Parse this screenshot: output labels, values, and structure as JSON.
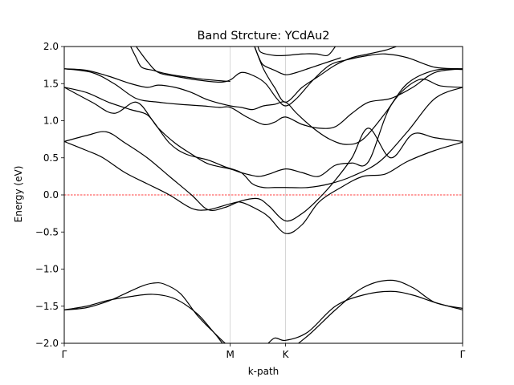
{
  "chart_data": {
    "type": "line",
    "title": "Band Strcture: YCdAu2",
    "xlabel": "k-path",
    "ylabel": "Energy (eV)",
    "ylim": [
      -2.0,
      2.0
    ],
    "xlim": [
      0,
      3.6
    ],
    "grid": false,
    "yticks": [
      -2.0,
      -1.5,
      -1.0,
      -0.5,
      0.0,
      0.5,
      1.0,
      1.5,
      2.0
    ],
    "ytick_labels": [
      "−2.0",
      "−1.5",
      "−1.0",
      "−0.5",
      "0.0",
      "0.5",
      "1.0",
      "1.5",
      "2.0"
    ],
    "kpoints": [
      {
        "label": "Γ",
        "x": 0.0
      },
      {
        "label": "M",
        "x": 1.5
      },
      {
        "label": "K",
        "x": 2.0
      },
      {
        "label": "Γ",
        "x": 3.6
      }
    ],
    "fermi_level": 0.0,
    "colors": {
      "bands": "#000000",
      "fermi": "#ff0000",
      "kline": "#cccccc"
    },
    "series": [
      {
        "x": [
          0,
          0.2,
          0.4,
          0.55,
          0.7,
          0.8,
          0.9,
          1.05,
          1.2,
          1.35,
          1.5,
          1.65,
          1.8,
          2.0,
          2.2,
          2.45,
          2.7,
          2.95,
          3.15,
          3.35,
          3.6
        ],
        "values": [
          -1.55,
          -1.52,
          -1.43,
          -1.33,
          -1.23,
          -1.19,
          -1.2,
          -1.33,
          -1.62,
          -1.85,
          -2.05,
          -2.1,
          -2.1,
          -2.1,
          -1.9,
          -1.55,
          -1.25,
          -1.15,
          -1.25,
          -1.45,
          -1.53
        ]
      },
      {
        "x": [
          0,
          0.2,
          0.4,
          0.6,
          0.8,
          1.0,
          1.2,
          1.35,
          1.5,
          1.65,
          1.8,
          1.9,
          2.0,
          2.2,
          2.45,
          2.7,
          2.95,
          3.15,
          3.35,
          3.6
        ],
        "values": [
          -1.55,
          -1.5,
          -1.42,
          -1.37,
          -1.34,
          -1.4,
          -1.6,
          -1.85,
          -2.1,
          -2.1,
          -2.05,
          -1.93,
          -1.96,
          -1.85,
          -1.5,
          -1.35,
          -1.3,
          -1.35,
          -1.45,
          -1.55
        ]
      },
      {
        "x": [
          0,
          0.2,
          0.35,
          0.55,
          0.75,
          0.95,
          1.15,
          1.3,
          1.5,
          1.6,
          1.75,
          1.85,
          2.0,
          2.15,
          2.3,
          2.5,
          2.7,
          2.9,
          3.1,
          3.35,
          3.6
        ],
        "values": [
          0.72,
          0.6,
          0.5,
          0.3,
          0.15,
          0.0,
          -0.18,
          -0.2,
          -0.12,
          -0.1,
          -0.2,
          -0.3,
          -0.52,
          -0.4,
          -0.1,
          0.1,
          0.25,
          0.28,
          0.45,
          0.6,
          0.71
        ]
      },
      {
        "x": [
          0,
          0.2,
          0.38,
          0.55,
          0.75,
          0.95,
          1.15,
          1.3,
          1.45,
          1.6,
          1.75,
          1.85,
          2.0,
          2.15,
          2.3,
          2.45,
          2.6,
          2.75,
          2.95,
          3.15,
          3.35,
          3.6
        ],
        "values": [
          0.72,
          0.8,
          0.85,
          0.7,
          0.5,
          0.25,
          0.0,
          -0.2,
          -0.17,
          -0.08,
          -0.05,
          -0.15,
          -0.35,
          -0.25,
          -0.05,
          0.2,
          0.5,
          0.9,
          0.5,
          0.82,
          0.77,
          0.72
        ]
      },
      {
        "x": [
          0,
          0.25,
          0.45,
          0.65,
          0.8,
          0.95,
          1.1,
          1.3,
          1.45,
          1.6,
          1.7,
          1.8,
          1.9,
          2.0,
          2.2,
          2.4,
          2.6,
          2.85,
          3.1,
          3.35,
          3.6
        ],
        "values": [
          1.45,
          1.25,
          1.1,
          1.25,
          1.0,
          0.7,
          0.55,
          0.47,
          0.38,
          0.3,
          0.15,
          0.1,
          0.1,
          0.1,
          0.1,
          0.15,
          0.25,
          0.45,
          0.85,
          1.3,
          1.45
        ]
      },
      {
        "x": [
          0,
          0.2,
          0.4,
          0.6,
          0.75,
          0.85,
          1.0,
          1.15,
          1.3,
          1.5,
          1.6,
          1.75,
          1.85,
          2.0,
          2.15,
          2.3,
          2.45,
          2.6,
          2.75,
          2.95,
          3.2,
          3.4,
          3.6
        ],
        "values": [
          1.45,
          1.38,
          1.25,
          1.15,
          1.08,
          0.9,
          0.7,
          0.55,
          0.42,
          0.35,
          0.3,
          0.25,
          0.28,
          0.35,
          0.3,
          0.25,
          0.4,
          0.43,
          0.45,
          1.2,
          1.55,
          1.47,
          1.45
        ]
      },
      {
        "x": [
          0,
          0.25,
          0.45,
          0.65,
          0.85,
          1.05,
          1.25,
          1.4,
          1.5,
          1.65,
          1.8,
          1.9,
          2.0,
          2.15,
          2.3,
          2.45,
          2.6,
          2.75,
          2.95,
          3.15,
          3.35,
          3.6
        ],
        "values": [
          1.7,
          1.65,
          1.5,
          1.3,
          1.25,
          1.22,
          1.2,
          1.18,
          1.18,
          1.05,
          0.95,
          0.98,
          1.05,
          0.95,
          0.9,
          0.92,
          1.1,
          1.25,
          1.3,
          1.45,
          1.65,
          1.7
        ]
      },
      {
        "x": [
          0,
          0.2,
          0.4,
          0.6,
          0.75,
          0.85,
          1.0,
          1.15,
          1.3,
          1.5,
          1.6,
          1.7,
          1.8,
          1.9,
          2.0,
          2.1,
          2.25,
          2.4,
          2.55,
          2.7,
          2.9,
          3.1,
          3.35,
          3.6
        ],
        "values": [
          1.7,
          1.68,
          1.6,
          1.5,
          1.45,
          1.48,
          1.45,
          1.38,
          1.28,
          1.2,
          1.18,
          1.15,
          1.2,
          1.22,
          1.25,
          1.1,
          0.9,
          0.75,
          0.68,
          0.75,
          1.1,
          1.5,
          1.68,
          1.69
        ]
      },
      {
        "x": [
          0.6,
          0.65,
          0.7,
          0.8,
          0.9,
          1.05,
          1.25,
          1.4,
          1.5
        ],
        "values": [
          2.0,
          1.85,
          1.72,
          1.68,
          1.64,
          1.6,
          1.56,
          1.54,
          1.53
        ]
      },
      {
        "x": [
          0.65,
          0.75,
          0.85,
          1.0,
          1.2,
          1.4,
          1.5,
          1.6,
          1.72,
          1.82,
          1.92,
          2.0,
          2.1,
          2.25,
          2.4,
          2.55,
          2.75,
          2.9,
          3.1,
          3.35,
          3.6
        ],
        "values": [
          2.0,
          1.8,
          1.65,
          1.6,
          1.55,
          1.52,
          1.55,
          1.65,
          1.6,
          1.5,
          1.3,
          1.2,
          1.3,
          1.55,
          1.75,
          1.82,
          1.88,
          1.9,
          1.85,
          1.72,
          1.7
        ]
      },
      {
        "x": [
          1.72,
          1.76,
          1.8,
          1.9,
          2.0,
          2.1,
          2.2,
          2.3,
          2.4,
          2.5
        ],
        "values": [
          2.0,
          1.85,
          1.75,
          1.68,
          1.62,
          1.65,
          1.7,
          1.75,
          1.8,
          1.85
        ]
      },
      {
        "x": [
          1.75,
          1.78,
          1.9,
          2.0,
          2.15,
          2.28,
          2.38,
          2.45
        ],
        "values": [
          2.0,
          1.92,
          1.88,
          1.88,
          1.9,
          1.9,
          1.88,
          2.0
        ]
      },
      {
        "x": [
          1.72,
          1.8,
          1.9,
          2.0,
          2.15,
          2.3,
          2.45,
          2.6,
          2.75,
          2.9,
          3.0
        ],
        "values": [
          2.0,
          1.7,
          1.45,
          1.25,
          1.45,
          1.6,
          1.75,
          1.85,
          1.9,
          1.95,
          2.0
        ]
      }
    ]
  }
}
